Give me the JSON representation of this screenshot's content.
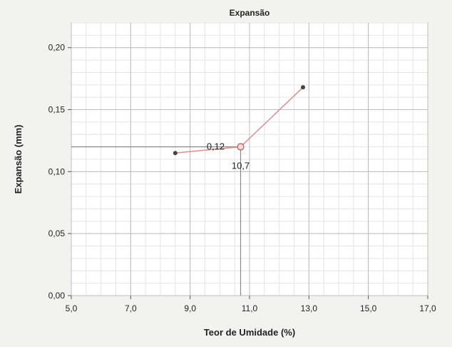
{
  "chart_data": {
    "type": "line",
    "title": "Expansão",
    "xlabel": "Teor de Umidade (%)",
    "ylabel": "Expansão (mm)",
    "xlim": [
      5.0,
      17.0
    ],
    "ylim": [
      0.0,
      0.22
    ],
    "x_ticks": [
      5.0,
      7.0,
      9.0,
      11.0,
      13.0,
      15.0,
      17.0
    ],
    "x_tick_labels": [
      "5,0",
      "7,0",
      "9,0",
      "11,0",
      "13,0",
      "15,0",
      "17,0"
    ],
    "y_ticks": [
      0.0,
      0.05,
      0.1,
      0.15,
      0.2
    ],
    "y_tick_labels": [
      "0,00",
      "0,05",
      "0,10",
      "0,15",
      "0,20"
    ],
    "grid": true,
    "series": [
      {
        "x": [
          8.5,
          10.7,
          12.8
        ],
        "y": [
          0.115,
          0.12,
          0.168
        ],
        "color": "#d98f8f"
      }
    ],
    "highlight": {
      "x": 10.7,
      "y": 0.12,
      "x_label": "10,7",
      "y_label": "0,12",
      "label_color": "#2a5a8a"
    }
  }
}
